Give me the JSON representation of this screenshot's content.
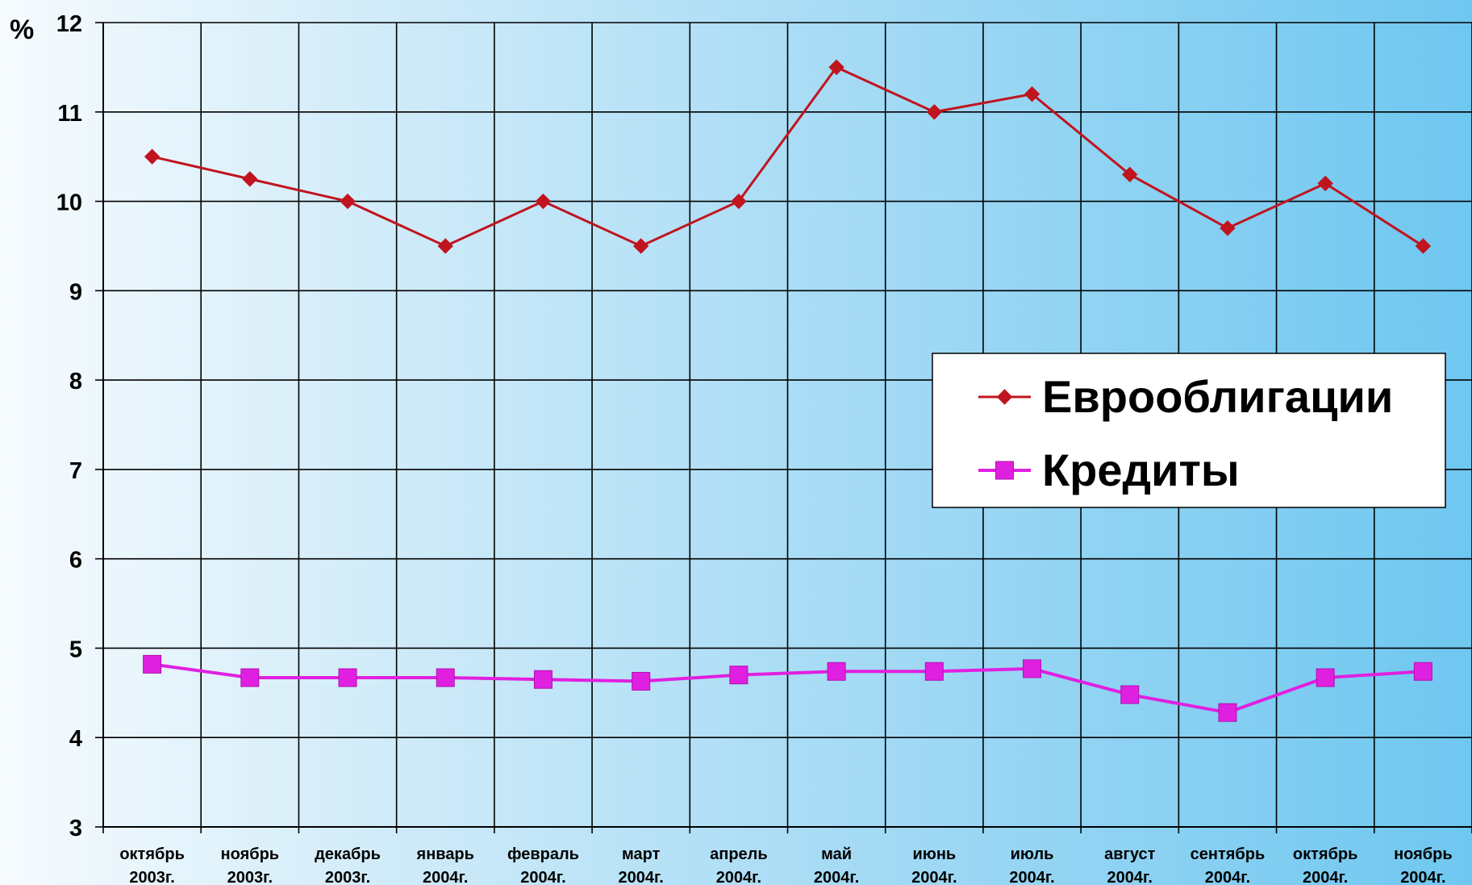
{
  "chart_data": {
    "type": "line",
    "y_unit": "%",
    "ylim": [
      3,
      12
    ],
    "y_ticks": [
      3,
      4,
      5,
      6,
      7,
      8,
      9,
      10,
      11,
      12
    ],
    "grid": true,
    "legend_position": "right",
    "categories": [
      [
        "октябрь",
        "2003г."
      ],
      [
        "ноябрь",
        "2003г."
      ],
      [
        "декабрь",
        "2003г."
      ],
      [
        "январь",
        "2004г."
      ],
      [
        "февраль",
        "2004г."
      ],
      [
        "март",
        "2004г."
      ],
      [
        "апрель",
        "2004г."
      ],
      [
        "май",
        "2004г."
      ],
      [
        "июнь",
        "2004г."
      ],
      [
        "июль",
        "2004г."
      ],
      [
        "август",
        "2004г."
      ],
      [
        "сентябрь",
        "2004г."
      ],
      [
        "октябрь",
        "2004г."
      ],
      [
        "ноябрь",
        "2004г."
      ]
    ],
    "series": [
      {
        "name": "Еврооблигации",
        "marker": "diamond",
        "color": "#c0141e",
        "values": [
          10.5,
          10.25,
          10.0,
          9.5,
          10.0,
          9.5,
          10.0,
          11.5,
          11.0,
          11.2,
          10.3,
          9.7,
          10.2,
          9.5
        ]
      },
      {
        "name": "Кредиты",
        "marker": "square",
        "color": "#e020e0",
        "values": [
          4.82,
          4.67,
          4.67,
          4.67,
          4.65,
          4.63,
          4.7,
          4.74,
          4.74,
          4.77,
          4.48,
          4.28,
          4.67,
          4.74
        ]
      }
    ]
  }
}
